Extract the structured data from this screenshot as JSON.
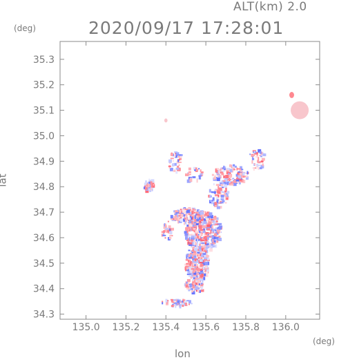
{
  "header": {
    "altitude_label": "ALT(km) 2.0",
    "timestamp": "2020/09/17 17:28:01"
  },
  "axes": {
    "x_label": "lon",
    "y_label": "lat",
    "x_unit": "(deg)",
    "y_unit": "(deg)",
    "x_ticks": [
      "135.0",
      "135.2",
      "135.4",
      "135.6",
      "135.8",
      "136.0"
    ],
    "y_ticks": [
      "34.3",
      "34.4",
      "34.5",
      "34.6",
      "34.7",
      "34.8",
      "34.9",
      "35.0",
      "35.1",
      "35.2",
      "35.3"
    ]
  },
  "chart_data": {
    "type": "heatmap",
    "xlim": [
      134.87,
      136.17
    ],
    "ylim": [
      34.28,
      35.37
    ],
    "x_ticks": [
      135.0,
      135.2,
      135.4,
      135.6,
      135.8,
      136.0
    ],
    "y_ticks": [
      34.3,
      34.4,
      34.5,
      34.6,
      34.7,
      34.8,
      34.9,
      35.0,
      35.1,
      35.2,
      35.3
    ],
    "grid": false,
    "colors": {
      "positive": "#ff4d5e",
      "negative": "#4d5eff",
      "frame": "#8a8a8a"
    },
    "clusters": [
      {
        "lon": 135.58,
        "lat": 34.63,
        "rlon": 0.09,
        "rlat": 0.08,
        "n": 420,
        "seed": 11
      },
      {
        "lon": 135.55,
        "lat": 34.5,
        "rlon": 0.06,
        "rlat": 0.07,
        "n": 260,
        "seed": 12
      },
      {
        "lon": 135.5,
        "lat": 34.69,
        "rlon": 0.08,
        "rlat": 0.03,
        "n": 140,
        "seed": 13
      },
      {
        "lon": 135.54,
        "lat": 34.42,
        "rlon": 0.05,
        "rlat": 0.03,
        "n": 70,
        "seed": 14
      },
      {
        "lon": 135.72,
        "lat": 34.85,
        "rlon": 0.09,
        "rlat": 0.04,
        "n": 150,
        "seed": 15
      },
      {
        "lon": 135.66,
        "lat": 34.77,
        "rlon": 0.05,
        "rlat": 0.05,
        "n": 70,
        "seed": 16
      },
      {
        "lon": 135.44,
        "lat": 34.9,
        "rlon": 0.04,
        "rlat": 0.04,
        "n": 40,
        "seed": 17
      },
      {
        "lon": 135.54,
        "lat": 34.85,
        "rlon": 0.05,
        "rlat": 0.03,
        "n": 35,
        "seed": 18
      },
      {
        "lon": 135.31,
        "lat": 34.81,
        "rlon": 0.025,
        "rlat": 0.025,
        "n": 35,
        "seed": 19
      },
      {
        "lon": 135.45,
        "lat": 34.35,
        "rlon": 0.08,
        "rlat": 0.015,
        "n": 45,
        "seed": 20
      },
      {
        "lon": 135.85,
        "lat": 34.91,
        "rlon": 0.04,
        "rlat": 0.04,
        "n": 40,
        "seed": 21
      },
      {
        "lon": 135.4,
        "lat": 34.63,
        "rlon": 0.03,
        "rlat": 0.04,
        "n": 30,
        "seed": 22
      }
    ],
    "blobs": [
      {
        "lon": 136.07,
        "lat": 35.1,
        "rlon": 0.045,
        "rlat": 0.035,
        "color": "#f8c6cc"
      },
      {
        "lon": 136.03,
        "lat": 35.16,
        "rlon": 0.012,
        "rlat": 0.012,
        "color": "#ff8890"
      },
      {
        "lon": 135.4,
        "lat": 35.06,
        "rlon": 0.008,
        "rlat": 0.008,
        "color": "#f8c6cc"
      }
    ]
  }
}
